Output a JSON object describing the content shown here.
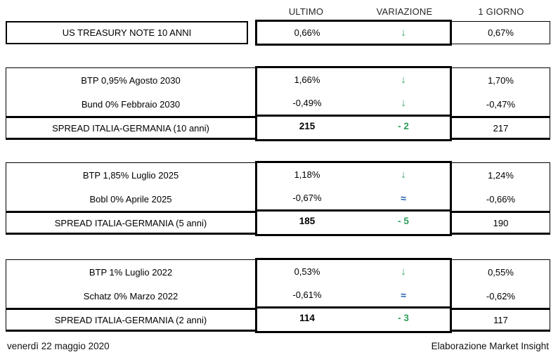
{
  "header": {
    "ultimo": "ULTIMO",
    "variazione": "VARIAZIONE",
    "giorno": "1 GIORNO"
  },
  "us_treasury": {
    "label": "US TREASURY NOTE 10 ANNI",
    "ultimo": "0,66%",
    "variazione": "↓",
    "giorno": "0,67%"
  },
  "block_10y": {
    "btp": {
      "label": "BTP 0,95% Agosto 2030",
      "ultimo": "1,66%",
      "variazione": "↓",
      "giorno": "1,70%"
    },
    "bund": {
      "label": "Bund 0% Febbraio 2030",
      "ultimo": "-0,49%",
      "variazione": "↓",
      "giorno": "-0,47%"
    },
    "spread": {
      "label": "SPREAD ITALIA-GERMANIA (10 anni)",
      "ultimo": "215",
      "variazione": "- 2",
      "giorno": "217"
    }
  },
  "block_5y": {
    "btp": {
      "label": "BTP 1,85% Luglio 2025",
      "ultimo": "1,18%",
      "variazione": "↓",
      "giorno": "1,24%"
    },
    "bobl": {
      "label": "Bobl 0% Aprile 2025",
      "ultimo": "-0,67%",
      "variazione": "≈",
      "giorno": "-0,66%"
    },
    "spread": {
      "label": "SPREAD ITALIA-GERMANIA (5 anni)",
      "ultimo": "185",
      "variazione": "- 5",
      "giorno": "190"
    }
  },
  "block_2y": {
    "btp": {
      "label": "BTP 1% Luglio 2022",
      "ultimo": "0,53%",
      "variazione": "↓",
      "giorno": "0,55%"
    },
    "schatz": {
      "label": "Schatz 0% Marzo 2022",
      "ultimo": "-0,61%",
      "variazione": "≈",
      "giorno": "-0,62%"
    },
    "spread": {
      "label": "SPREAD ITALIA-GERMANIA (2 anni)",
      "ultimo": "114",
      "variazione": "- 3",
      "giorno": "117"
    }
  },
  "footer": {
    "date": "venerdì 22 maggio 2020",
    "credit": "Elaborazione Market Insight"
  },
  "colors": {
    "positive_green": "#2e9e5b",
    "neutral_blue": "#1f5faa",
    "border_black": "#000000"
  }
}
